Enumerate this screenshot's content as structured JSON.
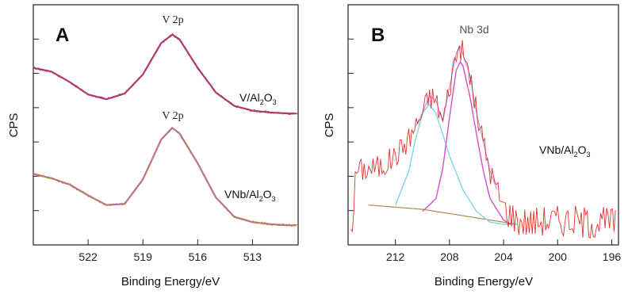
{
  "panel_a": {
    "letter": "A",
    "ylabel": "CPS",
    "xlabel": "Binding Energy/eV"
  },
  "panel_b": {
    "letter": "B",
    "ylabel": "CPS",
    "xlabel": "Binding Energy/eV"
  },
  "colors": {
    "data_red": "#e0352f",
    "data_olive": "#9aa02a",
    "fit_purple": "#7e3fb0",
    "fit_magenta": "#d64fc8",
    "fit_cyan": "#7fd6e0",
    "fit_brown": "#b08a4a"
  },
  "chart_data": [
    {
      "type": "line",
      "panel": "A",
      "ylabel": "CPS",
      "xlabel": "Binding Energy/eV",
      "x_ticks": [
        522,
        519,
        516,
        513
      ],
      "xlim": [
        525,
        510.5
      ],
      "x_reversed": true,
      "y_ticks_count": 6,
      "series": [
        {
          "name": "V/Al2O3",
          "label_main": "V/Al",
          "label_sub1": "2",
          "label_mid": "O",
          "label_sub2": "3",
          "peak_label": "V 2p",
          "x": [
            525,
            524,
            523,
            522,
            521,
            520,
            519,
            518,
            517.4,
            517,
            516,
            515,
            514,
            513,
            512,
            511,
            510.5
          ],
          "y": [
            0.62,
            0.58,
            0.47,
            0.34,
            0.29,
            0.35,
            0.55,
            0.88,
            0.97,
            0.92,
            0.62,
            0.36,
            0.22,
            0.17,
            0.15,
            0.14,
            0.14
          ]
        },
        {
          "name": "VNb/Al2O3",
          "label_main": "VNb/Al",
          "label_sub1": "2",
          "label_mid": "O",
          "label_sub2": "3",
          "peak_label": "V 2p",
          "x": [
            525,
            524,
            523,
            522,
            521,
            520,
            519,
            518,
            517.4,
            517,
            516,
            515,
            514,
            513,
            512,
            511,
            510.5
          ],
          "y": [
            0.5,
            0.46,
            0.4,
            0.3,
            0.21,
            0.22,
            0.45,
            0.82,
            0.93,
            0.88,
            0.6,
            0.28,
            0.1,
            0.05,
            0.03,
            0.02,
            0.02
          ]
        }
      ]
    },
    {
      "type": "line",
      "panel": "B",
      "ylabel": "CPS",
      "xlabel": "Binding Energy/eV",
      "x_ticks": [
        212,
        208,
        204,
        200,
        196
      ],
      "xlim": [
        215.5,
        195.5
      ],
      "x_reversed": true,
      "y_ticks_count": 6,
      "peak_label": "Nb 3d",
      "series_label": {
        "label_main": "VNb/Al",
        "label_sub1": "2",
        "label_mid": "O",
        "label_sub2": "3"
      },
      "series": [
        {
          "name": "VNb/Al2O3",
          "x": [
            215,
            214,
            213,
            212,
            211,
            210,
            209.5,
            209,
            208.5,
            208,
            207.5,
            207.2,
            206.5,
            206,
            205,
            204,
            203,
            202,
            201,
            200,
            199,
            198,
            197,
            196
          ],
          "y": [
            0.35,
            0.36,
            0.37,
            0.42,
            0.5,
            0.62,
            0.7,
            0.68,
            0.58,
            0.74,
            0.9,
            0.93,
            0.8,
            0.62,
            0.35,
            0.18,
            0.12,
            0.11,
            0.12,
            0.12,
            0.12,
            0.11,
            0.11,
            0.11
          ]
        },
        {
          "name": "fit 1",
          "x": [
            212,
            211,
            210.5,
            210,
            209.5,
            209,
            208.5,
            208,
            207,
            206,
            205,
            204,
            203
          ],
          "y": [
            0.19,
            0.35,
            0.5,
            0.62,
            0.66,
            0.62,
            0.52,
            0.42,
            0.26,
            0.16,
            0.11,
            0.1,
            0.1
          ]
        },
        {
          "name": "fit 2",
          "x": [
            210,
            209,
            208.5,
            208,
            207.5,
            207.2,
            207,
            206.5,
            206,
            205.5,
            205,
            204,
            203.5
          ],
          "y": [
            0.16,
            0.22,
            0.36,
            0.6,
            0.82,
            0.86,
            0.84,
            0.7,
            0.52,
            0.35,
            0.22,
            0.12,
            0.1
          ]
        },
        {
          "name": "baseline",
          "x": [
            214,
            210,
            206,
            203
          ],
          "y": [
            0.19,
            0.17,
            0.13,
            0.1
          ]
        }
      ]
    }
  ]
}
